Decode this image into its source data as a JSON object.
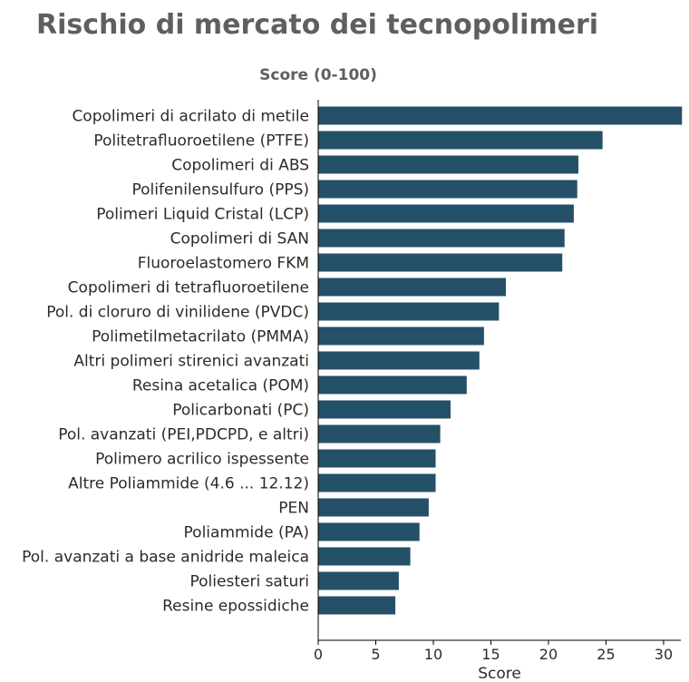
{
  "chart_data": {
    "type": "bar",
    "orientation": "horizontal",
    "title": "Rischio di mercato dei tecnopolimeri",
    "subtitle": "Score (0-100)",
    "xlabel": "Score",
    "ylabel": "",
    "xlim": [
      0,
      31.5
    ],
    "xticks": [
      0,
      5,
      10,
      15,
      20,
      25,
      30
    ],
    "bar_color": "#245068",
    "grid": false,
    "categories": [
      "Copolimeri di acrilato di metile",
      "Politetrafluoroetilene (PTFE)",
      "Copolimeri di ABS",
      "Polifenilensulfuro (PPS)",
      "Polimeri Liquid Cristal (LCP)",
      "Copolimeri di SAN",
      "Fluoroelastomero FKM",
      "Copolimeri di tetrafluoroetilene",
      "Pol. di cloruro di vinilidene (PVDC)",
      "Polimetilmetacrilato (PMMA)",
      "Altri polimeri stirenici avanzati",
      "Resina acetalica (POM)",
      "Policarbonati (PC)",
      "Pol. avanzati (PEI,PDCPD, e altri)",
      "Polimero acrilico ispessente",
      "Altre Poliammide (4.6 ... 12.12)",
      "PEN",
      "Poliammide (PA)",
      "Pol. avanzati a base anidride maleica",
      "Poliesteri saturi",
      "Resine epossidiche"
    ],
    "values": [
      31.6,
      24.7,
      22.6,
      22.5,
      22.2,
      21.4,
      21.2,
      16.3,
      15.7,
      14.4,
      14.0,
      12.9,
      11.5,
      10.6,
      10.2,
      10.2,
      9.6,
      8.8,
      8.0,
      7.0,
      6.7
    ]
  }
}
